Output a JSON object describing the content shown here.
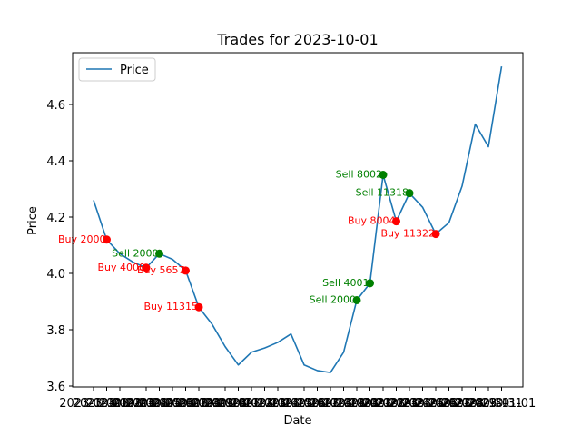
{
  "chart_data": {
    "type": "line",
    "title": "Trades for 2023-10-01",
    "xlabel": "Date",
    "ylabel": "Price",
    "x": [
      "2023-10-01",
      "2023-10-02",
      "2023-10-03",
      "2023-10-04",
      "2023-10-05",
      "2023-10-06",
      "2023-10-07",
      "2023-10-08",
      "2023-10-09",
      "2023-10-10",
      "2023-10-11",
      "2023-10-12",
      "2023-10-13",
      "2023-10-14",
      "2023-10-15",
      "2023-10-16",
      "2023-10-17",
      "2023-10-18",
      "2023-10-19",
      "2023-10-20",
      "2023-10-21",
      "2023-10-22",
      "2023-10-23",
      "2023-10-24",
      "2023-10-25",
      "2023-10-26",
      "2023-10-27",
      "2023-10-28",
      "2023-10-29",
      "2023-10-30",
      "2023-10-31",
      "2023-11-01"
    ],
    "series": [
      {
        "name": "Price",
        "color": "#1f77b4",
        "values": [
          4.26,
          4.12,
          4.07,
          4.04,
          4.02,
          4.07,
          4.05,
          4.01,
          3.88,
          3.82,
          3.74,
          3.675,
          3.72,
          3.735,
          3.755,
          3.785,
          3.675,
          3.655,
          3.648,
          3.72,
          3.905,
          3.965,
          4.35,
          4.185,
          4.285,
          4.235,
          4.14,
          4.18,
          4.31,
          4.53,
          4.45,
          4.735
        ]
      }
    ],
    "trades": [
      {
        "type": "Buy",
        "label": "Buy 2000",
        "index": 1,
        "price": 4.12
      },
      {
        "type": "Buy",
        "label": "Buy 4000",
        "index": 4,
        "price": 4.02
      },
      {
        "type": "Sell",
        "label": "Sell 2000",
        "index": 5,
        "price": 4.07
      },
      {
        "type": "Buy",
        "label": "Buy 5657",
        "index": 7,
        "price": 4.01
      },
      {
        "type": "Buy",
        "label": "Buy 11315",
        "index": 8,
        "price": 3.88
      },
      {
        "type": "Sell",
        "label": "Sell 2000",
        "index": 20,
        "price": 3.905
      },
      {
        "type": "Sell",
        "label": "Sell 4001",
        "index": 21,
        "price": 3.965
      },
      {
        "type": "Sell",
        "label": "Sell 8002",
        "index": 22,
        "price": 4.35
      },
      {
        "type": "Buy",
        "label": "Buy 8004",
        "index": 23,
        "price": 4.185
      },
      {
        "type": "Sell",
        "label": "Sell 11318",
        "index": 24,
        "price": 4.285
      },
      {
        "type": "Buy",
        "label": "Buy 11322",
        "index": 26,
        "price": 4.14
      }
    ],
    "colors": {
      "buy": "#ff0000",
      "sell": "#008000",
      "buy_text": "#ff0000",
      "sell_text": "#008000"
    },
    "yticks": [
      "3.6",
      "3.8",
      "4.0",
      "4.2",
      "4.4",
      "4.6"
    ],
    "ylim": [
      3.6,
      4.8
    ],
    "legend": {
      "position": "upper-left"
    },
    "grid": false
  }
}
